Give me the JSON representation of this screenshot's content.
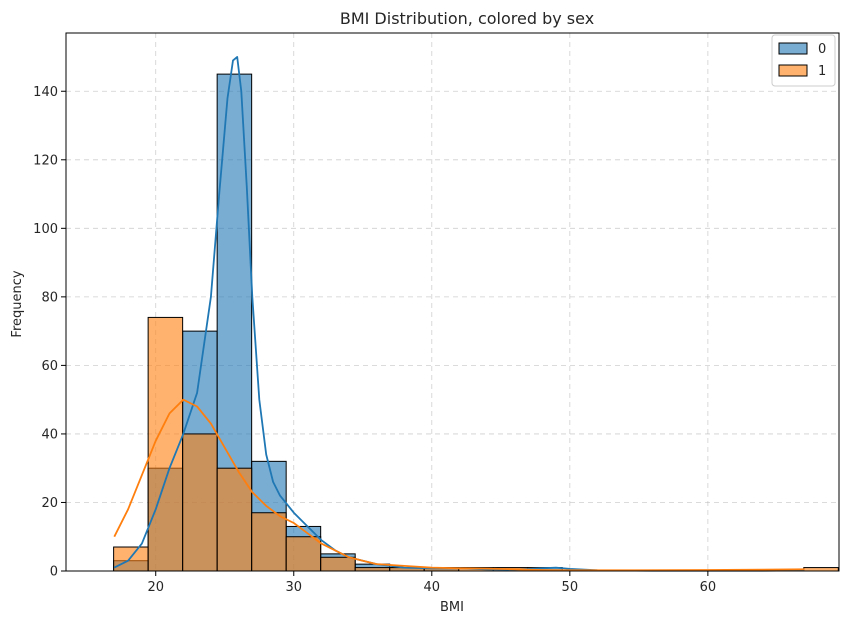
{
  "chart_data": {
    "type": "bar",
    "title": "BMI Distribution, colored by sex",
    "xlabel": "BMI",
    "ylabel": "Frequency",
    "xlim": [
      13.5,
      69.5
    ],
    "ylim": [
      0,
      157
    ],
    "xticks": [
      20,
      30,
      40,
      50,
      60
    ],
    "yticks": [
      0,
      20,
      40,
      60,
      80,
      100,
      120,
      140
    ],
    "grid": true,
    "legend_position": "top-right",
    "bin_edges": [
      16.95,
      19.45,
      21.95,
      24.45,
      26.95,
      29.45,
      31.95,
      34.45,
      36.95,
      39.45,
      41.95,
      44.45,
      46.95,
      49.45,
      51.95,
      54.45,
      56.95,
      59.45,
      61.95,
      64.45,
      66.95,
      69.45
    ],
    "series": [
      {
        "name": "0",
        "color": "#1f77b4",
        "values": [
          3,
          30,
          70,
          145,
          32,
          13,
          5,
          2,
          1,
          1,
          0,
          0,
          1,
          0,
          0,
          0,
          0,
          0,
          0,
          0,
          0
        ],
        "kde_x": [
          17,
          18,
          19,
          20,
          21,
          22,
          23,
          24,
          24.6,
          25.2,
          25.6,
          25.9,
          26.2,
          26.6,
          27,
          27.5,
          28,
          28.5,
          29,
          30,
          31,
          32,
          33,
          34,
          35,
          36,
          37,
          38,
          40,
          42,
          44,
          46,
          48,
          49,
          50,
          52,
          56,
          60,
          64,
          67
        ],
        "kde_y": [
          1,
          3,
          8,
          18,
          30,
          40,
          52,
          80,
          110,
          138,
          149,
          150,
          140,
          112,
          80,
          50,
          34,
          26,
          22,
          17,
          13,
          9,
          6,
          4,
          3,
          2,
          1.5,
          1,
          0.8,
          0.8,
          0.5,
          0.4,
          0.8,
          1,
          0.6,
          0.2,
          0.1,
          0.1,
          0.1,
          0.2
        ]
      },
      {
        "name": "1",
        "color": "#ff7f0e",
        "values": [
          7,
          74,
          40,
          30,
          17,
          10,
          4,
          1,
          1,
          1,
          1,
          1,
          0,
          0,
          0,
          0,
          0,
          0,
          0,
          0,
          1
        ],
        "kde_x": [
          17,
          18,
          19,
          20,
          21,
          22,
          23,
          24,
          25,
          26,
          27,
          28,
          29,
          30,
          31,
          32,
          33,
          34,
          35,
          36,
          38,
          40,
          42,
          44,
          46,
          48,
          50,
          54,
          60,
          64,
          67
        ],
        "kde_y": [
          10,
          18,
          28,
          38,
          46,
          50,
          48,
          43,
          36,
          29,
          23,
          19,
          16,
          14,
          11,
          8,
          6,
          4,
          3,
          2,
          1.5,
          1,
          0.8,
          0.7,
          0.5,
          0.3,
          0.2,
          0.2,
          0.3,
          0.4,
          0.5
        ]
      }
    ]
  }
}
